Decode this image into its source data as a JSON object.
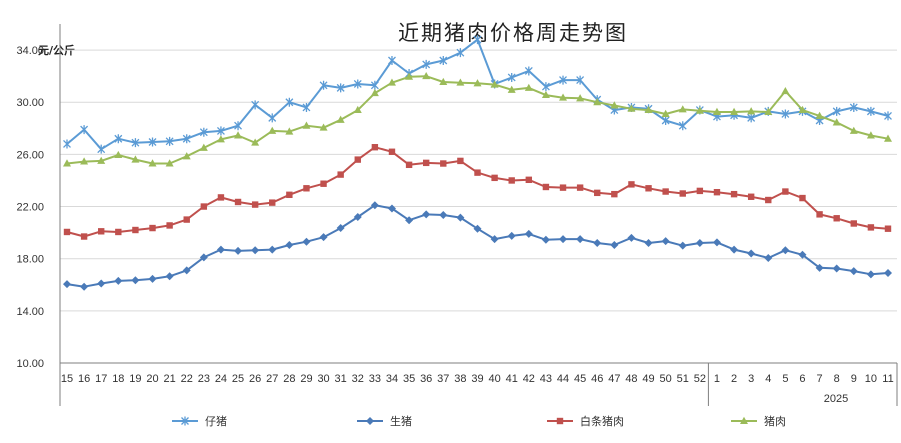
{
  "chart_data": {
    "type": "line",
    "title": "近期猪肉价格周走势图",
    "ylabel": "元/公斤",
    "ylim": [
      10,
      36
    ],
    "yticks": [
      "10.00",
      "14.00",
      "18.00",
      "22.00",
      "26.00",
      "30.00",
      "34.00"
    ],
    "ytick_values": [
      10,
      14,
      18,
      22,
      26,
      30,
      34
    ],
    "categories": [
      "15",
      "16",
      "17",
      "18",
      "19",
      "20",
      "21",
      "22",
      "23",
      "24",
      "25",
      "26",
      "27",
      "28",
      "29",
      "30",
      "31",
      "32",
      "33",
      "34",
      "35",
      "36",
      "37",
      "38",
      "39",
      "40",
      "41",
      "42",
      "43",
      "44",
      "45",
      "46",
      "47",
      "48",
      "49",
      "50",
      "51",
      "52",
      "1",
      "2",
      "3",
      "4",
      "5",
      "6",
      "7",
      "8",
      "9",
      "10",
      "11"
    ],
    "year_group_label": "2025",
    "year_group_start_index": 38,
    "grid": "horizontal",
    "legend_position": "bottom",
    "series": [
      {
        "name": "仔猪",
        "color": "#5b9bd5",
        "marker": "star",
        "values": [
          26.8,
          27.9,
          26.4,
          27.2,
          26.9,
          26.95,
          27.0,
          27.2,
          27.7,
          27.8,
          28.2,
          29.8,
          28.8,
          30.0,
          29.6,
          31.3,
          31.1,
          31.4,
          31.3,
          33.2,
          32.2,
          32.9,
          33.2,
          33.8,
          34.8,
          31.4,
          31.9,
          32.4,
          31.2,
          31.7,
          31.7,
          30.2,
          29.4,
          29.6,
          29.5,
          28.6,
          28.2,
          29.4,
          28.9,
          29.0,
          28.8,
          29.3,
          29.1,
          29.3,
          28.6,
          29.3,
          29.6,
          29.3,
          28.95
        ]
      },
      {
        "name": "生猪",
        "color": "#4a7ab8",
        "marker": "diamond",
        "values": [
          16.05,
          15.85,
          16.1,
          16.3,
          16.35,
          16.45,
          16.65,
          17.1,
          18.1,
          18.7,
          18.6,
          18.65,
          18.7,
          19.05,
          19.3,
          19.65,
          20.35,
          21.2,
          22.1,
          21.85,
          20.95,
          21.4,
          21.35,
          21.15,
          20.3,
          19.5,
          19.75,
          19.9,
          19.45,
          19.5,
          19.5,
          19.2,
          19.05,
          19.6,
          19.2,
          19.35,
          19.0,
          19.2,
          19.25,
          18.7,
          18.4,
          18.05,
          18.65,
          18.3,
          17.3,
          17.25,
          17.05,
          16.8,
          16.9
        ]
      },
      {
        "name": "白条猪肉",
        "color": "#c0504d",
        "marker": "square",
        "values": [
          20.05,
          19.7,
          20.1,
          20.05,
          20.2,
          20.35,
          20.55,
          21.0,
          22.0,
          22.7,
          22.35,
          22.15,
          22.3,
          22.9,
          23.4,
          23.75,
          24.45,
          25.6,
          26.55,
          26.2,
          25.2,
          25.35,
          25.3,
          25.5,
          24.6,
          24.2,
          24.0,
          24.05,
          23.5,
          23.45,
          23.45,
          23.05,
          22.95,
          23.7,
          23.4,
          23.15,
          23.0,
          23.2,
          23.1,
          22.95,
          22.75,
          22.5,
          23.15,
          22.65,
          21.4,
          21.1,
          20.7,
          20.4,
          20.3
        ]
      },
      {
        "name": "猪肉",
        "color": "#9bbb59",
        "marker": "triangle",
        "values": [
          25.3,
          25.45,
          25.5,
          25.95,
          25.6,
          25.3,
          25.3,
          25.85,
          26.5,
          27.15,
          27.45,
          26.9,
          27.8,
          27.75,
          28.2,
          28.05,
          28.65,
          29.4,
          30.7,
          31.5,
          31.95,
          32.0,
          31.55,
          31.5,
          31.45,
          31.35,
          30.95,
          31.1,
          30.55,
          30.35,
          30.3,
          30.0,
          29.75,
          29.5,
          29.4,
          29.1,
          29.45,
          29.35,
          29.25,
          29.25,
          29.3,
          29.25,
          30.85,
          29.4,
          28.95,
          28.45,
          27.8,
          27.45,
          27.2
        ]
      }
    ]
  }
}
